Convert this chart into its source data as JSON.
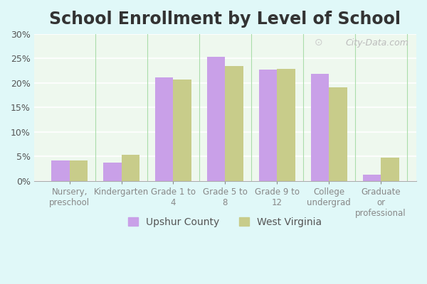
{
  "title": "School Enrollment by Level of School",
  "categories": [
    "Nursery,\npreschool",
    "Kindergarten",
    "Grade 1 to\n4",
    "Grade 5 to\n8",
    "Grade 9 to\n12",
    "College\nundergrad",
    "Graduate\nor\nprofessional"
  ],
  "upshur_values": [
    4.2,
    3.7,
    21.2,
    25.4,
    22.8,
    21.8,
    1.3
  ],
  "wv_values": [
    4.2,
    5.3,
    20.7,
    23.5,
    22.9,
    19.1,
    4.7
  ],
  "upshur_color": "#c9a0e8",
  "wv_color": "#c8cc8a",
  "upshur_label": "Upshur County",
  "wv_label": "West Virginia",
  "ylim": [
    0,
    30
  ],
  "yticks": [
    0,
    5,
    10,
    15,
    20,
    25,
    30
  ],
  "background_color": "#e0f8f8",
  "plot_bg_top": "#f5fff5",
  "plot_bg_bottom": "#f0f8e8",
  "title_fontsize": 17,
  "watermark": "City-Data.com"
}
